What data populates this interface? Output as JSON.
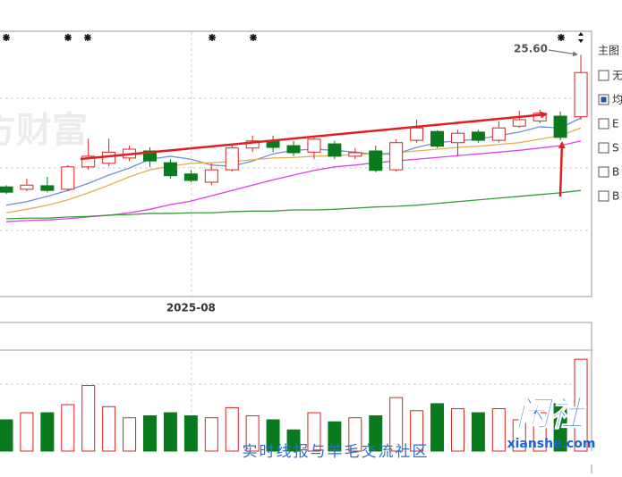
{
  "chart_data": [
    {
      "type": "candlestick",
      "categories": [
        null,
        null,
        null,
        null,
        null,
        null,
        null,
        null,
        null,
        "2025-08",
        null,
        null,
        null,
        null,
        null,
        null,
        null,
        null,
        null,
        null,
        null,
        null,
        null,
        null,
        null,
        null,
        null,
        null,
        null
      ],
      "open": [
        23.36,
        23.32,
        23.38,
        23.32,
        23.7,
        23.76,
        23.85,
        23.97,
        23.77,
        23.58,
        23.44,
        23.65,
        24.02,
        24.15,
        24.06,
        23.95,
        24.09,
        23.88,
        23.97,
        23.65,
        24.15,
        24.3,
        24.11,
        24.29,
        24.15,
        24.39,
        24.48,
        24.56,
        24.55
      ],
      "high": [
        23.39,
        23.5,
        23.53,
        23.73,
        24.18,
        24.18,
        24.06,
        24.03,
        23.83,
        23.65,
        23.76,
        24.06,
        24.23,
        24.23,
        24.14,
        24.23,
        24.14,
        24.02,
        24.06,
        24.17,
        24.5,
        24.32,
        24.33,
        24.33,
        24.47,
        24.65,
        24.67,
        24.64,
        25.6
      ],
      "low": [
        23.24,
        23.29,
        23.27,
        23.29,
        23.65,
        23.71,
        23.8,
        23.7,
        23.5,
        23.44,
        23.39,
        23.62,
        23.95,
        23.95,
        23.88,
        23.83,
        23.83,
        23.83,
        23.61,
        23.62,
        24.11,
        24.02,
        23.89,
        24.11,
        24.11,
        24.36,
        24.44,
        24.15,
        24.5
      ],
      "close": [
        23.27,
        23.39,
        23.3,
        23.7,
        23.88,
        23.95,
        24.0,
        23.8,
        23.55,
        23.47,
        23.65,
        24.02,
        24.14,
        24.03,
        23.94,
        24.17,
        23.88,
        23.94,
        23.64,
        24.11,
        24.36,
        24.05,
        24.27,
        24.15,
        24.36,
        24.5,
        24.61,
        24.2,
        25.3
      ],
      "up_color": "#e02020",
      "down_color": "#0a7a1e",
      "ylim": [
        21.5,
        26
      ],
      "series": [
        {
          "color": "#6f8fd8",
          "values": [
            23.05,
            23.11,
            23.2,
            23.3,
            23.42,
            23.56,
            23.68,
            23.83,
            23.88,
            23.83,
            23.73,
            23.71,
            23.8,
            23.92,
            23.98,
            24.0,
            23.98,
            23.95,
            23.91,
            23.92,
            24.03,
            24.11,
            24.14,
            24.17,
            24.23,
            24.29,
            24.38,
            24.36,
            24.53
          ]
        },
        {
          "color": "#e0b050",
          "values": [
            22.92,
            22.98,
            23.05,
            23.14,
            23.26,
            23.39,
            23.53,
            23.65,
            23.71,
            23.76,
            23.77,
            23.79,
            23.82,
            23.85,
            23.86,
            23.88,
            23.89,
            23.91,
            23.92,
            23.94,
            23.97,
            24.0,
            24.03,
            24.05,
            24.08,
            24.11,
            24.17,
            24.23,
            24.36
          ]
        },
        {
          "color": "#e040e0",
          "values": [
            22.77,
            22.79,
            22.8,
            22.82,
            22.85,
            22.88,
            22.92,
            22.98,
            23.06,
            23.12,
            23.21,
            23.3,
            23.39,
            23.48,
            23.56,
            23.64,
            23.7,
            23.73,
            23.77,
            23.8,
            23.83,
            23.86,
            23.89,
            23.92,
            23.95,
            23.98,
            24.02,
            24.06,
            24.14
          ]
        },
        {
          "color": "#3a9a3a",
          "values": [
            22.82,
            22.83,
            22.83,
            22.85,
            22.86,
            22.88,
            22.89,
            22.91,
            22.91,
            22.92,
            22.92,
            22.94,
            22.95,
            22.95,
            22.97,
            22.97,
            22.98,
            23.0,
            23.02,
            23.03,
            23.05,
            23.08,
            23.11,
            23.14,
            23.17,
            23.2,
            23.23,
            23.26,
            23.3
          ]
        }
      ],
      "annotations": [
        {
          "text": "25.60"
        }
      ]
    },
    {
      "type": "bar",
      "values": [
        31,
        38,
        38,
        46,
        65,
        44,
        33,
        35,
        38,
        35,
        33,
        43,
        35,
        31,
        21,
        38,
        29,
        33,
        35,
        53,
        40,
        47,
        42,
        38,
        42,
        31,
        38,
        47,
        91
      ],
      "ylim": [
        0,
        100
      ]
    }
  ],
  "legend_panel": {
    "title": "主图",
    "items": [
      "无",
      "均",
      "E",
      "S",
      "B",
      "B"
    ]
  },
  "watermarks": {
    "brand": "方财富",
    "forum": "实时线报与羊毛交流社区",
    "logo": "闲社",
    "site": "xianshe.com"
  }
}
